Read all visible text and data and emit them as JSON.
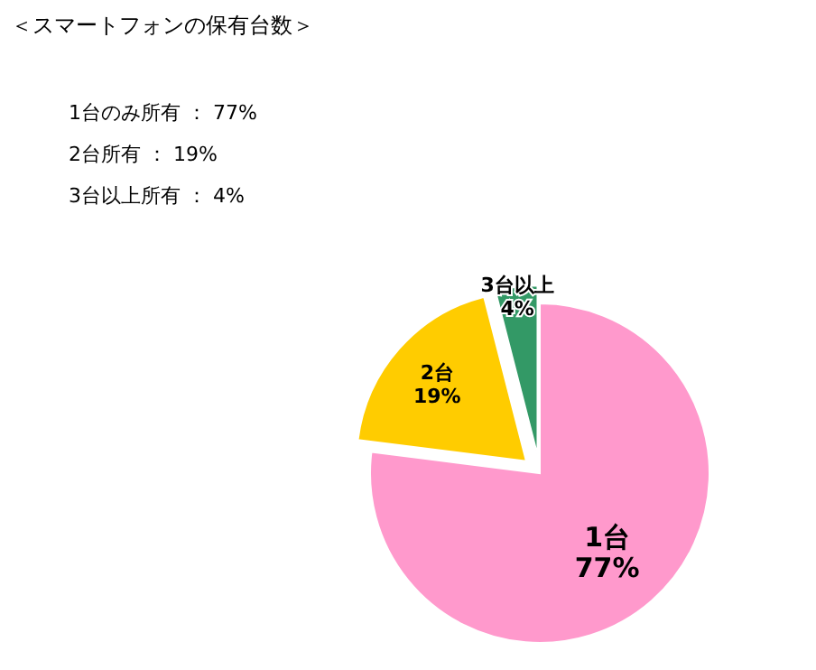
{
  "chart_data": {
    "type": "pie",
    "title": "＜スマートフォンの保有台数＞",
    "annotations": [
      "1台のみ所有 ： 77%",
      "2台所有 ： 19%",
      "3台以上所有 ： 4%"
    ],
    "categories": [
      "1台",
      "2台",
      "3台以上"
    ],
    "values": [
      77,
      19,
      4
    ],
    "colors": [
      "#ff99cc",
      "#ffcc00",
      "#339966"
    ],
    "value_labels": [
      "77%",
      "19%",
      "4%"
    ]
  }
}
